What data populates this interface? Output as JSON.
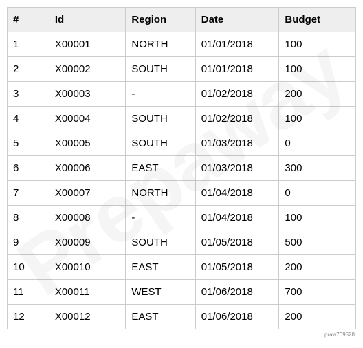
{
  "table": {
    "type": "table",
    "header_bg": "#eeeeee",
    "border_color": "#cccccc",
    "text_color": "#000000",
    "font_size": 15,
    "columns": [
      {
        "key": "num",
        "label": "#",
        "width": "12%"
      },
      {
        "key": "id",
        "label": "Id",
        "width": "22%"
      },
      {
        "key": "region",
        "label": "Region",
        "width": "20%"
      },
      {
        "key": "date",
        "label": "Date",
        "width": "24%"
      },
      {
        "key": "budget",
        "label": "Budget",
        "width": "22%"
      }
    ],
    "rows": [
      {
        "num": "1",
        "id": "X00001",
        "region": "NORTH",
        "date": "01/01/2018",
        "budget": "100"
      },
      {
        "num": "2",
        "id": "X00002",
        "region": "SOUTH",
        "date": "01/01/2018",
        "budget": "100"
      },
      {
        "num": "3",
        "id": "X00003",
        "region": "-",
        "date": "01/02/2018",
        "budget": "200"
      },
      {
        "num": "4",
        "id": "X00004",
        "region": "SOUTH",
        "date": "01/02/2018",
        "budget": "100"
      },
      {
        "num": "5",
        "id": "X00005",
        "region": "SOUTH",
        "date": "01/03/2018",
        "budget": "0"
      },
      {
        "num": "6",
        "id": "X00006",
        "region": "EAST",
        "date": "01/03/2018",
        "budget": "300"
      },
      {
        "num": "7",
        "id": "X00007",
        "region": "NORTH",
        "date": "01/04/2018",
        "budget": "0"
      },
      {
        "num": "8",
        "id": "X00008",
        "region": "-",
        "date": "01/04/2018",
        "budget": "100"
      },
      {
        "num": "9",
        "id": "X00009",
        "region": "SOUTH",
        "date": "01/05/2018",
        "budget": "500"
      },
      {
        "num": "10",
        "id": "X00010",
        "region": "EAST",
        "date": "01/05/2018",
        "budget": "200"
      },
      {
        "num": "11",
        "id": "X00011",
        "region": "WEST",
        "date": "01/06/2018",
        "budget": "700"
      },
      {
        "num": "12",
        "id": "X00012",
        "region": "EAST",
        "date": "01/06/2018",
        "budget": "200"
      }
    ]
  },
  "watermark_text": "Prepaway",
  "footer_id": "praw709528"
}
